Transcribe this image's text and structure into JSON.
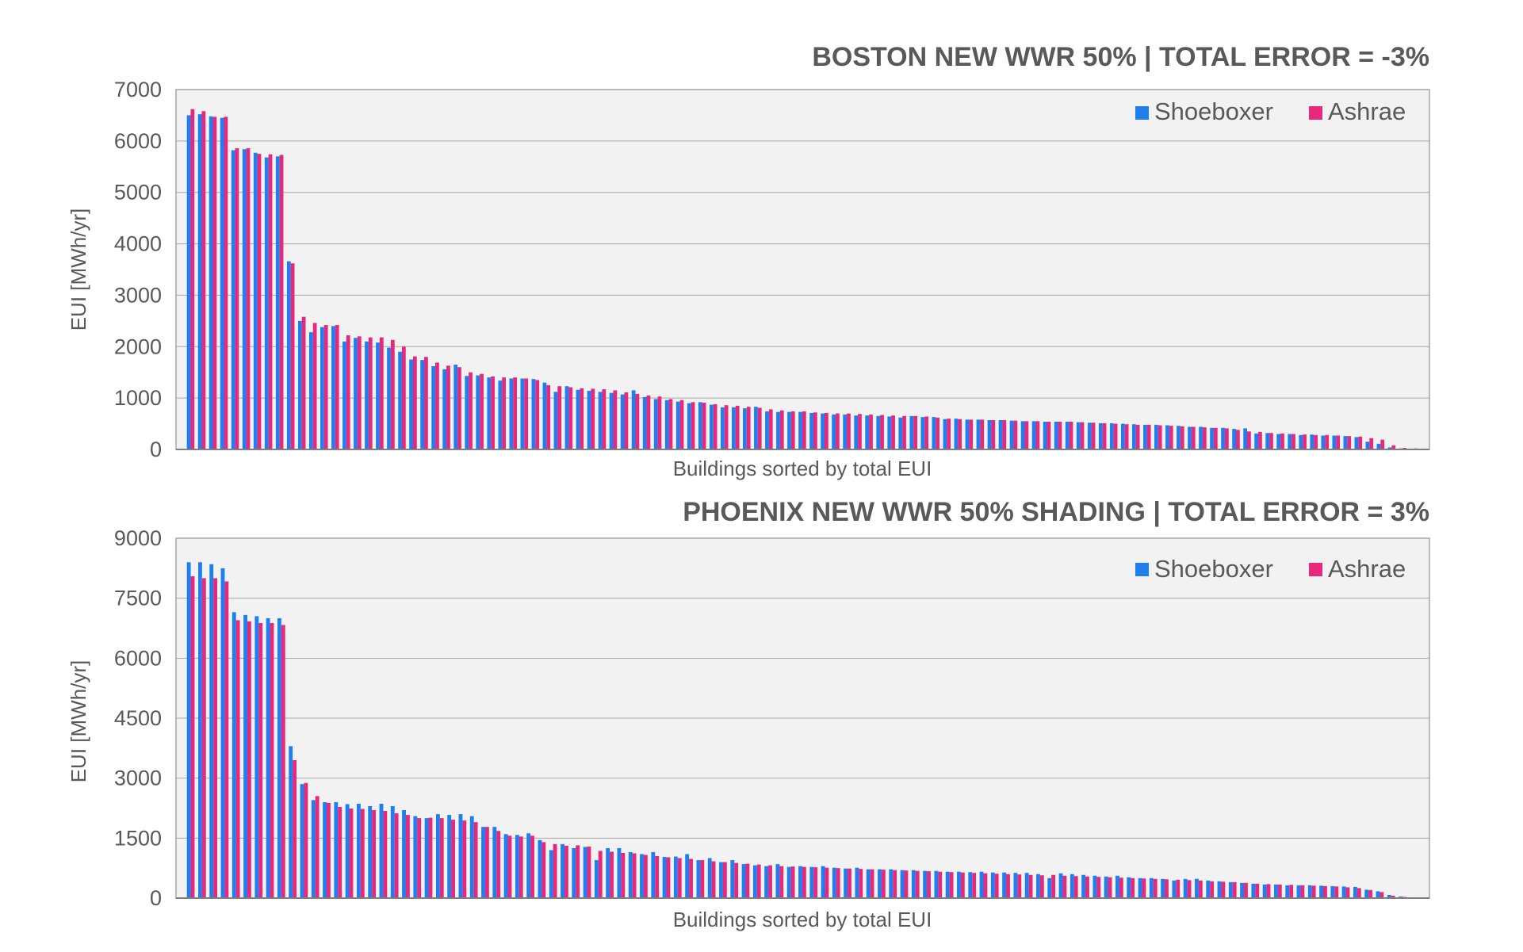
{
  "chart_data": [
    {
      "type": "bar",
      "title": "BOSTON NEW WWR 50% | TOTAL ERROR = -3%",
      "xlabel": "Buildings sorted by total EUI",
      "ylabel": "EUI [MWh/yr]",
      "ylim": [
        0,
        7000
      ],
      "yticks": [
        0,
        1000,
        2000,
        3000,
        4000,
        5000,
        6000,
        7000
      ],
      "grid": true,
      "legend_position": "top-right",
      "colors": {
        "Shoeboxer": "#1E7FF0",
        "Ashrae": "#E8287A"
      },
      "series": [
        {
          "name": "Shoeboxer",
          "values": [
            6500,
            6520,
            6480,
            6450,
            5820,
            5840,
            5770,
            5680,
            5700,
            3660,
            2500,
            2280,
            2380,
            2400,
            2100,
            2170,
            2100,
            2080,
            1980,
            1900,
            1750,
            1740,
            1620,
            1560,
            1650,
            1430,
            1440,
            1400,
            1340,
            1380,
            1380,
            1370,
            1300,
            1120,
            1230,
            1160,
            1140,
            1120,
            1100,
            1070,
            1150,
            1020,
            980,
            960,
            930,
            900,
            920,
            870,
            820,
            820,
            800,
            830,
            740,
            730,
            730,
            730,
            710,
            700,
            680,
            680,
            660,
            660,
            650,
            640,
            620,
            650,
            630,
            630,
            590,
            600,
            580,
            580,
            570,
            570,
            560,
            550,
            550,
            540,
            540,
            540,
            530,
            520,
            510,
            510,
            500,
            490,
            480,
            480,
            470,
            460,
            440,
            440,
            420,
            420,
            400,
            410,
            310,
            320,
            300,
            300,
            280,
            290,
            270,
            270,
            260,
            240,
            150,
            110,
            40,
            20,
            10
          ]
        },
        {
          "name": "Ashrae",
          "values": [
            6620,
            6580,
            6470,
            6470,
            5860,
            5860,
            5750,
            5740,
            5730,
            3620,
            2580,
            2460,
            2420,
            2420,
            2220,
            2200,
            2180,
            2180,
            2130,
            2000,
            1810,
            1800,
            1690,
            1630,
            1600,
            1500,
            1470,
            1420,
            1400,
            1400,
            1380,
            1350,
            1250,
            1230,
            1210,
            1190,
            1180,
            1170,
            1150,
            1110,
            1080,
            1050,
            1030,
            980,
            960,
            920,
            910,
            880,
            860,
            850,
            830,
            810,
            780,
            760,
            740,
            740,
            720,
            710,
            700,
            700,
            690,
            680,
            670,
            660,
            650,
            650,
            640,
            620,
            600,
            590,
            580,
            580,
            570,
            570,
            560,
            550,
            550,
            540,
            540,
            540,
            530,
            520,
            510,
            500,
            490,
            480,
            480,
            470,
            460,
            450,
            440,
            430,
            420,
            410,
            380,
            350,
            340,
            320,
            310,
            300,
            290,
            280,
            280,
            270,
            260,
            250,
            220,
            190,
            80,
            30,
            20
          ]
        }
      ]
    },
    {
      "type": "bar",
      "title": "PHOENIX NEW WWR 50% SHADING | TOTAL ERROR = 3%",
      "xlabel": "Buildings sorted by total EUI",
      "ylabel": "EUI [MWh/yr]",
      "ylim": [
        0,
        9000
      ],
      "yticks": [
        0,
        1500,
        3000,
        4500,
        6000,
        7500,
        9000
      ],
      "grid": true,
      "legend_position": "top-right",
      "colors": {
        "Shoeboxer": "#1E7FF0",
        "Ashrae": "#E8287A"
      },
      "series": [
        {
          "name": "Shoeboxer",
          "values": [
            8400,
            8400,
            8350,
            8250,
            7150,
            7080,
            7050,
            7000,
            7000,
            3800,
            2850,
            2450,
            2400,
            2400,
            2350,
            2360,
            2300,
            2360,
            2300,
            2200,
            2050,
            2000,
            2100,
            2080,
            2100,
            2050,
            1780,
            1780,
            1600,
            1580,
            1620,
            1450,
            1200,
            1350,
            1250,
            1280,
            950,
            1250,
            1250,
            1150,
            1100,
            1150,
            1030,
            1040,
            1100,
            950,
            1000,
            900,
            950,
            850,
            820,
            800,
            850,
            780,
            800,
            780,
            800,
            760,
            740,
            760,
            720,
            720,
            720,
            700,
            700,
            680,
            680,
            660,
            660,
            650,
            660,
            640,
            640,
            630,
            630,
            600,
            500,
            620,
            600,
            580,
            560,
            540,
            560,
            520,
            500,
            500,
            480,
            440,
            480,
            480,
            440,
            420,
            400,
            380,
            360,
            340,
            340,
            320,
            320,
            320,
            310,
            300,
            290,
            280,
            210,
            170,
            80,
            40,
            20
          ]
        },
        {
          "name": "Ashrae",
          "values": [
            8050,
            8000,
            8000,
            7920,
            6950,
            6920,
            6880,
            6880,
            6830,
            3450,
            2880,
            2550,
            2380,
            2280,
            2240,
            2230,
            2200,
            2180,
            2120,
            2080,
            2000,
            2010,
            2000,
            1960,
            1940,
            1900,
            1780,
            1680,
            1560,
            1540,
            1560,
            1400,
            1350,
            1310,
            1320,
            1290,
            1180,
            1160,
            1130,
            1120,
            1080,
            1050,
            1020,
            1000,
            980,
            950,
            920,
            900,
            880,
            860,
            840,
            820,
            800,
            790,
            780,
            770,
            760,
            750,
            740,
            730,
            720,
            710,
            700,
            690,
            680,
            670,
            660,
            650,
            640,
            630,
            620,
            610,
            600,
            590,
            580,
            570,
            580,
            560,
            550,
            540,
            530,
            520,
            510,
            500,
            490,
            480,
            470,
            460,
            450,
            440,
            420,
            410,
            400,
            380,
            360,
            350,
            340,
            330,
            320,
            310,
            300,
            290,
            270,
            250,
            200,
            150,
            60,
            30,
            20
          ]
        }
      ]
    }
  ]
}
